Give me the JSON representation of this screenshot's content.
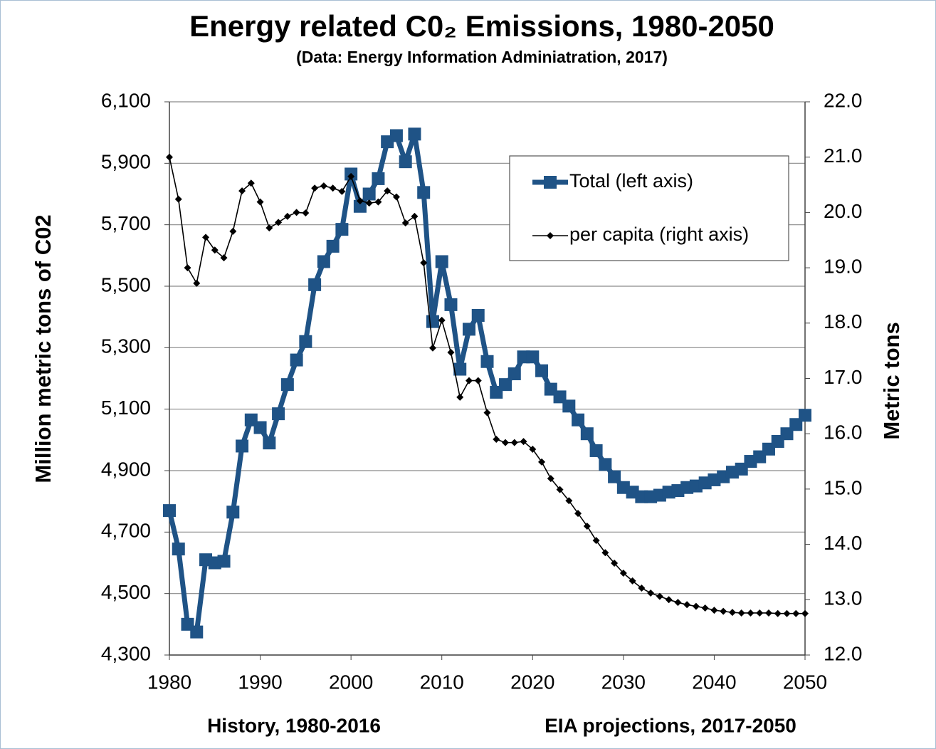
{
  "chart_data": {
    "type": "line",
    "title": "Energy related C0₂ Emissions, 1980-2050",
    "subtitle": "(Data: Energy Information Adminiatration, 2017)",
    "y_label": "Million metric tons of C02",
    "y2_label": "Metric tons",
    "annotations": [
      "History, 1980-2016",
      "EIA projections, 2017-2050"
    ],
    "x": [
      1980,
      1981,
      1982,
      1983,
      1984,
      1985,
      1986,
      1987,
      1988,
      1989,
      1990,
      1991,
      1992,
      1993,
      1994,
      1995,
      1996,
      1997,
      1998,
      1999,
      2000,
      2001,
      2002,
      2003,
      2004,
      2005,
      2006,
      2007,
      2008,
      2009,
      2010,
      2011,
      2012,
      2013,
      2014,
      2015,
      2016,
      2017,
      2018,
      2019,
      2020,
      2021,
      2022,
      2023,
      2024,
      2025,
      2026,
      2027,
      2028,
      2029,
      2030,
      2031,
      2032,
      2033,
      2034,
      2035,
      2036,
      2037,
      2038,
      2039,
      2040,
      2041,
      2042,
      2043,
      2044,
      2045,
      2046,
      2047,
      2048,
      2049,
      2050
    ],
    "xlim": [
      1980,
      2050
    ],
    "xticks": [
      1980,
      1990,
      2000,
      2010,
      2020,
      2030,
      2040,
      2050
    ],
    "ylim": [
      4300,
      6100
    ],
    "yticks": [
      {
        "value": 4300,
        "label": "4,300"
      },
      {
        "value": 4500,
        "label": "4,500"
      },
      {
        "value": 4700,
        "label": "4,700"
      },
      {
        "value": 4900,
        "label": "4,900"
      },
      {
        "value": 5100,
        "label": "5,100"
      },
      {
        "value": 5300,
        "label": "5,300"
      },
      {
        "value": 5500,
        "label": "5,500"
      },
      {
        "value": 5700,
        "label": "5,700"
      },
      {
        "value": 5900,
        "label": "5,900"
      },
      {
        "value": 6100,
        "label": "6,100"
      }
    ],
    "y2lim": [
      12,
      22
    ],
    "y2ticks": [
      {
        "value": 12,
        "label": "12.0"
      },
      {
        "value": 13,
        "label": "13.0"
      },
      {
        "value": 14,
        "label": "14.0"
      },
      {
        "value": 15,
        "label": "15.0"
      },
      {
        "value": 16,
        "label": "16.0"
      },
      {
        "value": 17,
        "label": "17.0"
      },
      {
        "value": 18,
        "label": "18.0"
      },
      {
        "value": 19,
        "label": "19.0"
      },
      {
        "value": 20,
        "label": "20.0"
      },
      {
        "value": 21,
        "label": "21.0"
      },
      {
        "value": 22,
        "label": "22.0"
      }
    ],
    "grid": true,
    "legend": "upper right",
    "series": [
      {
        "name": "Total (left axis)",
        "color": "#1f5386",
        "marker": "square",
        "axis": "y",
        "values": [
          4770,
          4645,
          4400,
          4375,
          4610,
          4600,
          4605,
          4765,
          4980,
          5065,
          5040,
          4990,
          5085,
          5180,
          5260,
          5320,
          5505,
          5580,
          5630,
          5685,
          5865,
          5760,
          5800,
          5850,
          5970,
          5990,
          5905,
          5995,
          5805,
          5385,
          5580,
          5440,
          5230,
          5360,
          5405,
          5255,
          5155,
          5180,
          5215,
          5270,
          5270,
          5225,
          5165,
          5140,
          5110,
          5065,
          5020,
          4965,
          4920,
          4880,
          4845,
          4830,
          4815,
          4815,
          4820,
          4830,
          4835,
          4845,
          4850,
          4860,
          4870,
          4880,
          4895,
          4905,
          4930,
          4945,
          4970,
          4995,
          5020,
          5050,
          5080
        ]
      },
      {
        "name": "per capita (right axis)",
        "color": "#000000",
        "marker": "diamond",
        "axis": "y2",
        "values": [
          21.0,
          20.24,
          19.0,
          18.72,
          19.55,
          19.32,
          19.18,
          19.66,
          20.39,
          20.53,
          20.19,
          19.72,
          19.82,
          19.93,
          20.0,
          19.99,
          20.44,
          20.48,
          20.44,
          20.38,
          20.65,
          20.21,
          20.17,
          20.19,
          20.39,
          20.28,
          19.81,
          19.93,
          19.09,
          17.55,
          18.05,
          17.47,
          16.66,
          16.96,
          16.96,
          16.38,
          15.9,
          15.84,
          15.84,
          15.86,
          15.72,
          15.49,
          15.19,
          14.99,
          14.79,
          14.56,
          14.33,
          14.07,
          13.85,
          13.66,
          13.48,
          13.34,
          13.21,
          13.12,
          13.06,
          13.0,
          12.95,
          12.91,
          12.88,
          12.85,
          12.81,
          12.79,
          12.77,
          12.76,
          12.76,
          12.76,
          12.76,
          12.75,
          12.75,
          12.75,
          12.75
        ]
      }
    ]
  }
}
